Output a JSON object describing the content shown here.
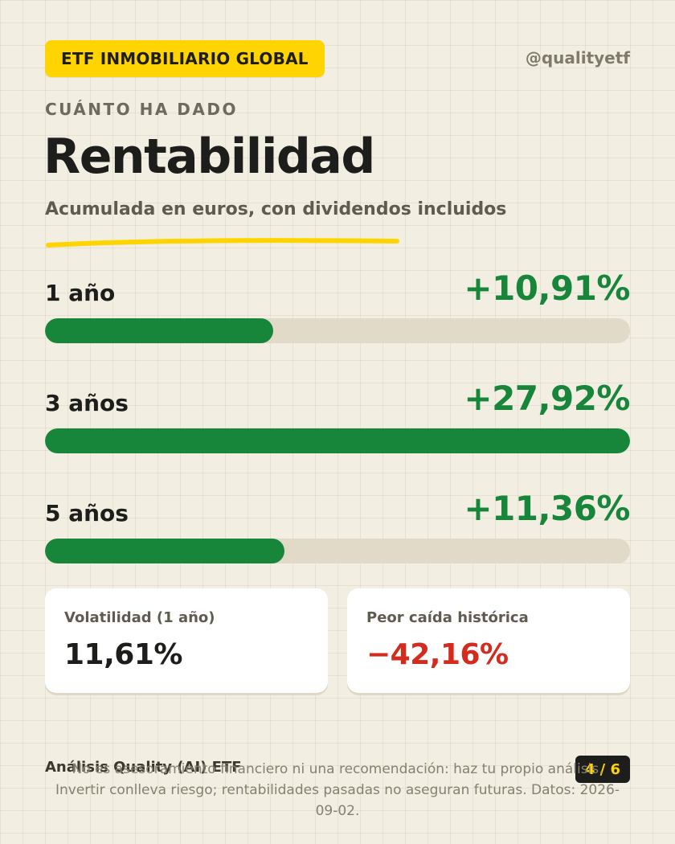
{
  "header": {
    "badge": "ETF INMOBILIARIO GLOBAL",
    "handle": "@qualityetf"
  },
  "intro": {
    "kicker": "CUÁNTO HA DADO",
    "title": "Rentabilidad",
    "subtitle": "Acumulada en euros, con dividendos incluidos"
  },
  "returns": [
    {
      "label": "1 año",
      "value": "+10,91%",
      "fill_fraction": 0.39
    },
    {
      "label": "3 años",
      "value": "+27,92%",
      "fill_fraction": 1.0
    },
    {
      "label": "5 años",
      "value": "+11,36%",
      "fill_fraction": 0.41
    }
  ],
  "stats": {
    "volatility": {
      "label": "Volatilidad (1 año)",
      "value": "11,61%"
    },
    "max_drawdown": {
      "label": "Peor caída histórica",
      "value": "−42,16%"
    }
  },
  "footer": {
    "brand": "Análisis Quality (AI) ETF",
    "page": "4 / 6",
    "disclaimer": "No es asesoramiento financiero ni una recomendación: haz tu propio análisis. Invertir conlleva riesgo; rentabilidades pasadas no aseguran futuras. Datos: 2026-09-02."
  },
  "colors": {
    "background": "#f2eee2",
    "accent_yellow": "#ffd400",
    "positive_green": "#17853a",
    "negative_red": "#d32b1e",
    "bar_track": "#e2dac8",
    "text_dark": "#1d1d1b"
  }
}
